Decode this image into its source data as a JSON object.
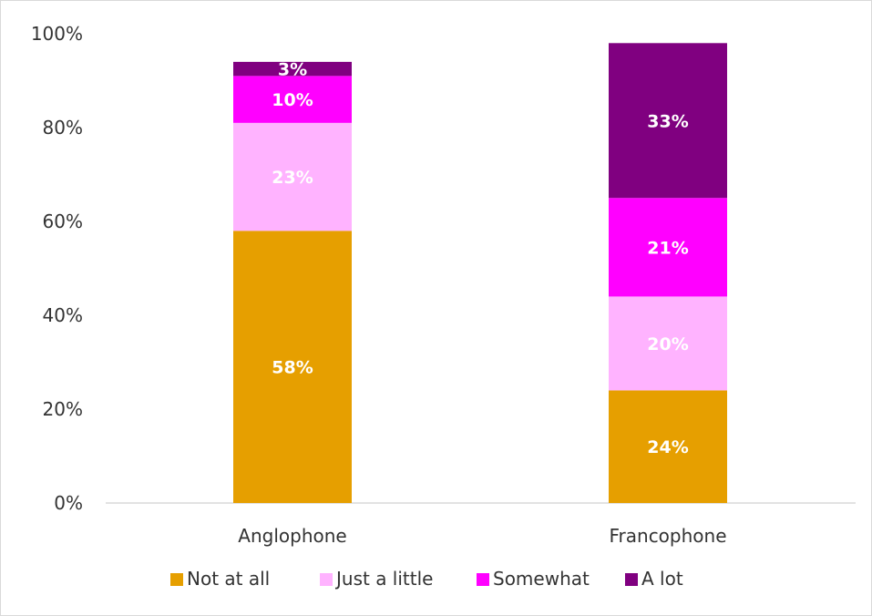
{
  "chart_data": {
    "type": "bar",
    "stacked": true,
    "categories": [
      "Anglophone",
      "Francophone"
    ],
    "series": [
      {
        "name": "Not at all",
        "color": "#E69F00",
        "values": [
          58,
          24
        ],
        "labels": [
          "58%",
          "24%"
        ]
      },
      {
        "name": "Just a little",
        "color": "#FFB3FF",
        "values": [
          23,
          20
        ],
        "labels": [
          "23%",
          "20%"
        ]
      },
      {
        "name": "Somewhat",
        "color": "#FF00FF",
        "values": [
          10,
          21
        ],
        "labels": [
          "10%",
          "21%"
        ]
      },
      {
        "name": "A lot",
        "color": "#800080",
        "values": [
          3,
          33
        ],
        "labels": [
          "3%",
          "33%"
        ]
      }
    ],
    "yticks": [
      "0%",
      "20%",
      "40%",
      "60%",
      "80%",
      "100%"
    ],
    "ylim": [
      0,
      100
    ],
    "grid": false,
    "legend_position": "bottom",
    "title": "",
    "xlabel": "",
    "ylabel": ""
  }
}
